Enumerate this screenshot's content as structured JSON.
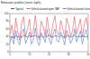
{
  "chart_data": {
    "type": "line",
    "title": "Emission profiles (units: kg/h)",
    "x": [
      0,
      1,
      2,
      3,
      4,
      5,
      6,
      7,
      8,
      9,
      10,
      11,
      12,
      13,
      14,
      15,
      16,
      17,
      18,
      19,
      20,
      21,
      22,
      23,
      24,
      25,
      26,
      27,
      28,
      29,
      30,
      31,
      32,
      33,
      34,
      35,
      36,
      37,
      38,
      39,
      40
    ],
    "series": [
      {
        "name": "Typical",
        "color": "#333333",
        "values": [
          38,
          40,
          36,
          42,
          39,
          41,
          37,
          44,
          40,
          38,
          42,
          39,
          41,
          43,
          38,
          40,
          42,
          37,
          41,
          39,
          44,
          40,
          38,
          42,
          41,
          39,
          43,
          40,
          37,
          41,
          42,
          38,
          40,
          44,
          39,
          41,
          38,
          42,
          40,
          39,
          41
        ]
      },
      {
        "name": "Vehicle-based open TAP",
        "color": "#e0303a",
        "values": [
          45,
          70,
          35,
          88,
          52,
          30,
          76,
          92,
          40,
          60,
          85,
          38,
          55,
          95,
          48,
          32,
          80,
          66,
          42,
          90,
          58,
          36,
          74,
          94,
          50,
          44,
          82,
          62,
          35,
          88,
          70,
          40,
          56,
          92,
          46,
          64,
          86,
          38,
          72,
          90,
          55
        ]
      },
      {
        "name": "Vehicle-based closed TAP",
        "color": "#3a5fd0",
        "values": [
          25,
          40,
          20,
          55,
          30,
          18,
          48,
          60,
          22,
          35,
          52,
          20,
          32,
          62,
          28,
          16,
          50,
          40,
          24,
          58,
          34,
          20,
          45,
          60,
          28,
          26,
          52,
          36,
          18,
          56,
          42,
          22,
          33,
          60,
          26,
          38,
          55,
          20,
          44,
          58,
          32
        ]
      }
    ],
    "xlim": [
      0,
      40
    ],
    "xticks": [
      0,
      10,
      20,
      30,
      40
    ],
    "ylim": [
      0,
      100
    ],
    "yticks": [
      0,
      20,
      40,
      60,
      80,
      100
    ],
    "grid": false,
    "legend": "top"
  }
}
